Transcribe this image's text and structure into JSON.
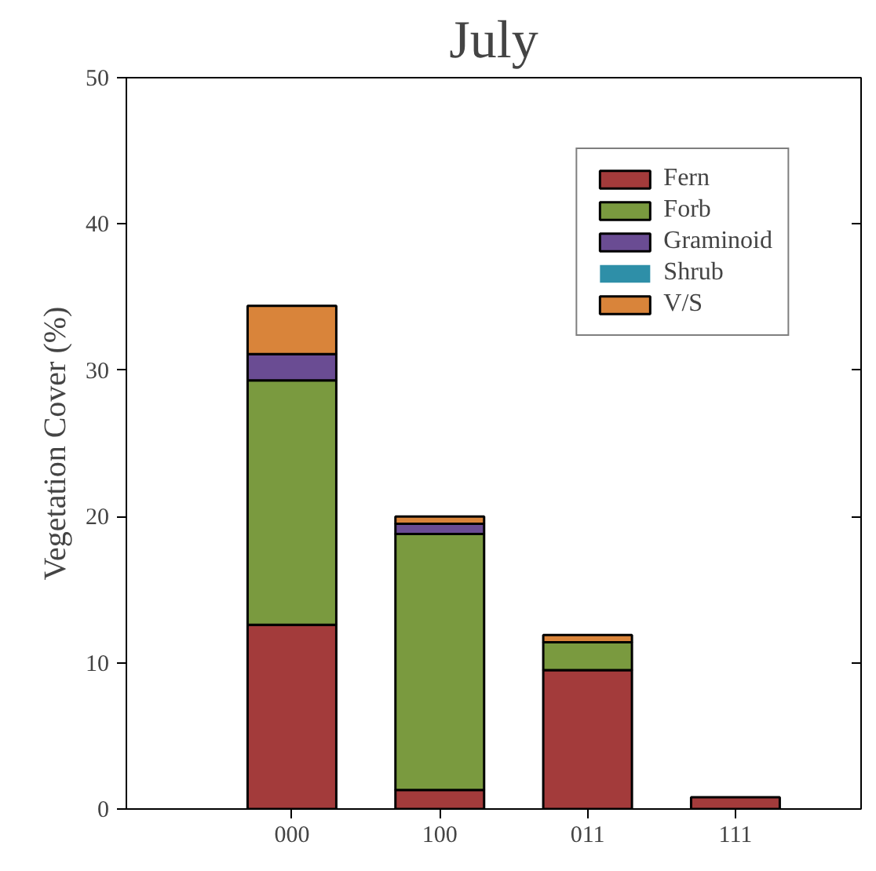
{
  "chart_data": {
    "type": "bar",
    "title": "July",
    "ylabel": "Vegetation Cover (%)",
    "categories": [
      "000",
      "100",
      "011",
      "111"
    ],
    "stacked": true,
    "series": [
      {
        "name": "Fern",
        "color": "#a33b3b",
        "values": [
          12.6,
          1.3,
          9.5,
          0.8
        ]
      },
      {
        "name": "Forb",
        "color": "#7a9a3f",
        "values": [
          16.7,
          17.5,
          1.9,
          0
        ]
      },
      {
        "name": "Graminoid",
        "color": "#6a4c93",
        "values": [
          1.8,
          0.7,
          null,
          0
        ]
      },
      {
        "name": "Shrub",
        "color": "#2e8fa8",
        "values": [
          0,
          0,
          0,
          0
        ]
      },
      {
        "name": "V/S",
        "color": "#d9843a",
        "values": [
          3.3,
          0.5,
          0.5,
          0
        ]
      }
    ],
    "ylim": [
      0,
      50
    ],
    "yticks": [
      0,
      10,
      20,
      30,
      40,
      50
    ],
    "grid": false,
    "legend": "top right"
  }
}
